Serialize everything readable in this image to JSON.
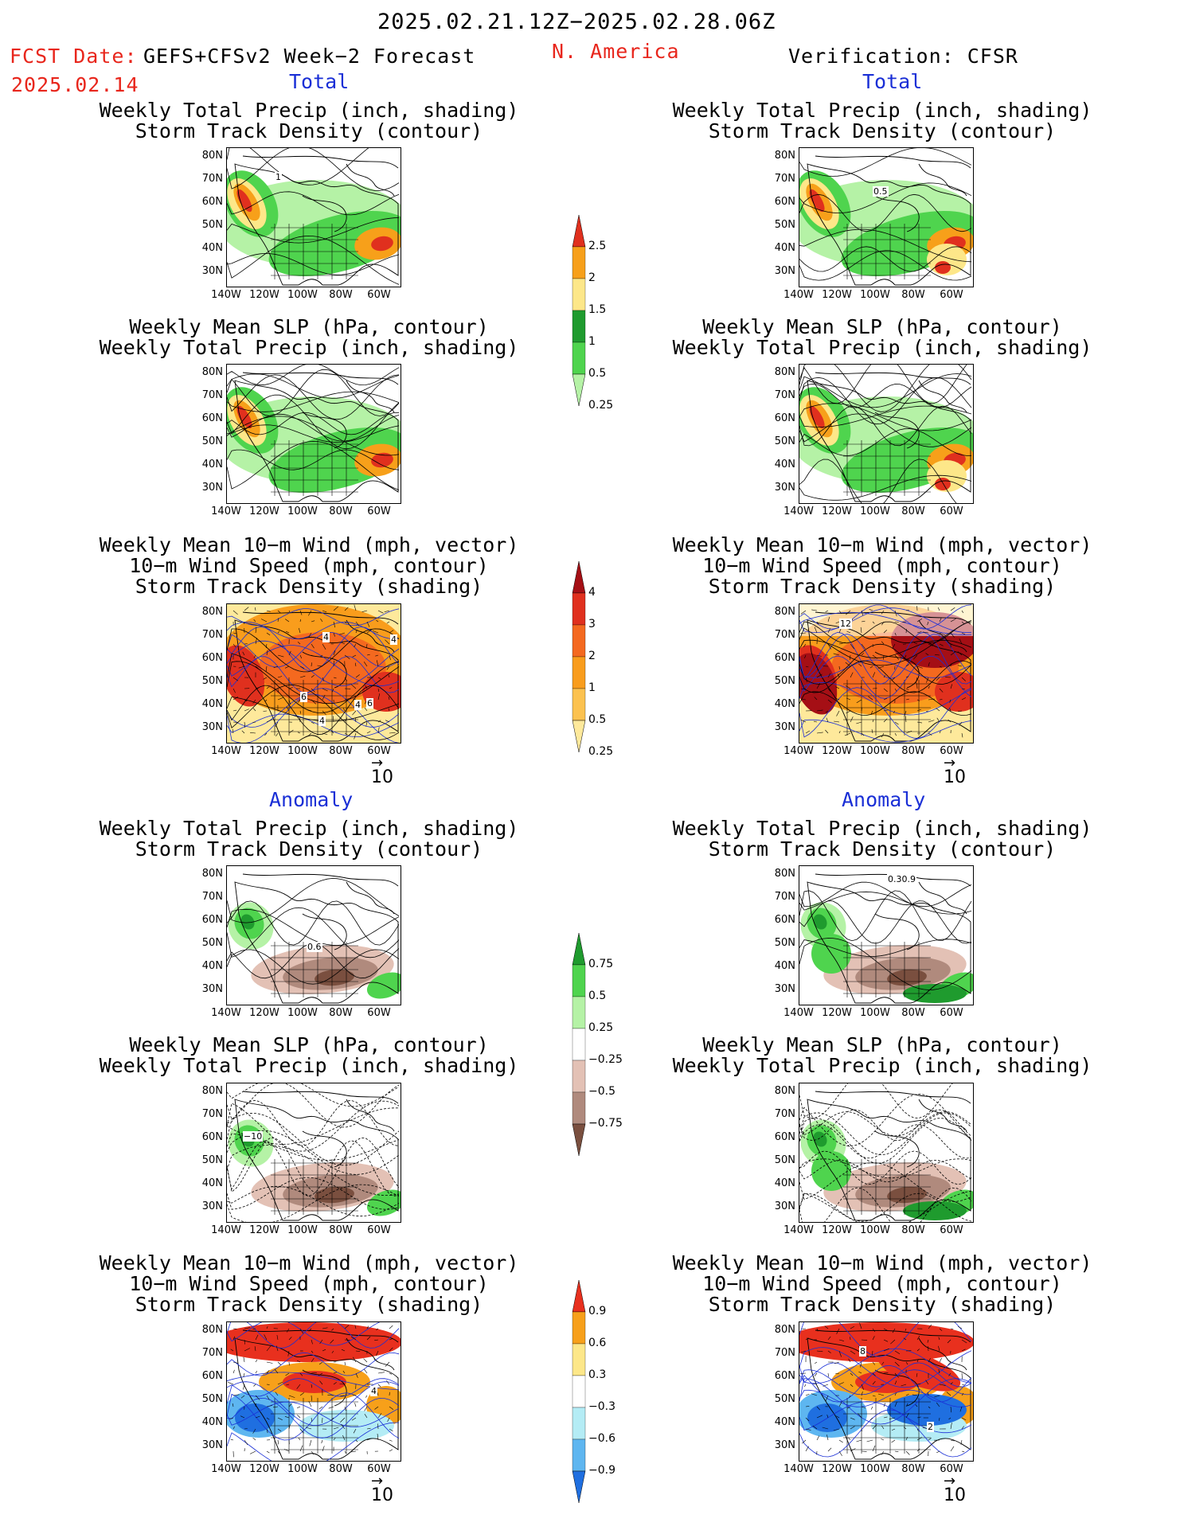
{
  "header": {
    "period": "2025.02.21.12Z−2025.02.28.06Z",
    "fcst_label": "FCST Date:",
    "fcst_date": "2025.02.14",
    "product": "GEFS+CFSv2 Week−2 Forecast",
    "region": "N. America",
    "verification": "Verification: CFSR"
  },
  "sections": {
    "total": "Total",
    "anomaly": "Anomaly"
  },
  "titles": {
    "precip_storm": [
      "Weekly Total Precip (inch, shading)",
      "Storm Track Density (contour)"
    ],
    "slp_precip": [
      "Weekly Mean SLP (hPa, contour)",
      "Weekly Total Precip (inch, shading)"
    ],
    "wind_storm": [
      "Weekly Mean 10−m Wind (mph, vector)",
      "10−m Wind Speed (mph, contour)",
      "Storm Track Density (shading)"
    ]
  },
  "axes": {
    "lat": [
      "80N",
      "70N",
      "60N",
      "50N",
      "40N",
      "30N"
    ],
    "lon": [
      "140W",
      "120W",
      "100W",
      "80W",
      "60W"
    ]
  },
  "vector_ref": "10",
  "contour_labels": {
    "fcst_total_precip": "1",
    "obs_total_precip": "0.5",
    "fcst_total_wind": [
      "4",
      "4",
      "4",
      "6",
      "4",
      "6"
    ],
    "obs_total_wind": [
      "12"
    ],
    "fcst_anom_precip": "0.6",
    "obs_anom_precip": "0.30.9",
    "fcst_anom_slp": "−10",
    "obs_anom_wind": [
      "8",
      "2"
    ],
    "fcst_anom_wind": [
      "4"
    ]
  },
  "colorbars": {
    "total_precip": {
      "labels": [
        "2.5",
        "2",
        "1.5",
        "1",
        "0.5",
        "0.25"
      ],
      "colors": [
        "#e0301e",
        "#f7a01a",
        "#fde789",
        "#1f9b2e",
        "#4fd44e",
        "#b5f2a6"
      ]
    },
    "total_storm": {
      "labels": [
        "4",
        "3",
        "2",
        "1",
        "0.5",
        "0.25"
      ],
      "colors": [
        "#a50f15",
        "#e0301e",
        "#f4691f",
        "#f99d1c",
        "#fcc24f",
        "#fee99b"
      ]
    },
    "anom_precip": {
      "labels": [
        "0.75",
        "0.5",
        "0.25",
        "−0.25",
        "−0.5",
        "−0.75"
      ],
      "colors": [
        "#1f9b2e",
        "#4fd44e",
        "#b5f2a6",
        "#ffffff",
        "#e3c1b5",
        "#b08a7d",
        "#7a4f3f"
      ]
    },
    "anom_storm": {
      "labels": [
        "0.9",
        "0.6",
        "0.3",
        "−0.3",
        "−0.6",
        "−0.9"
      ],
      "colors": [
        "#e8301e",
        "#f7a01a",
        "#fde789",
        "#ffffff",
        "#b4ecf5",
        "#5eb6f0",
        "#1f6fe0"
      ]
    }
  }
}
